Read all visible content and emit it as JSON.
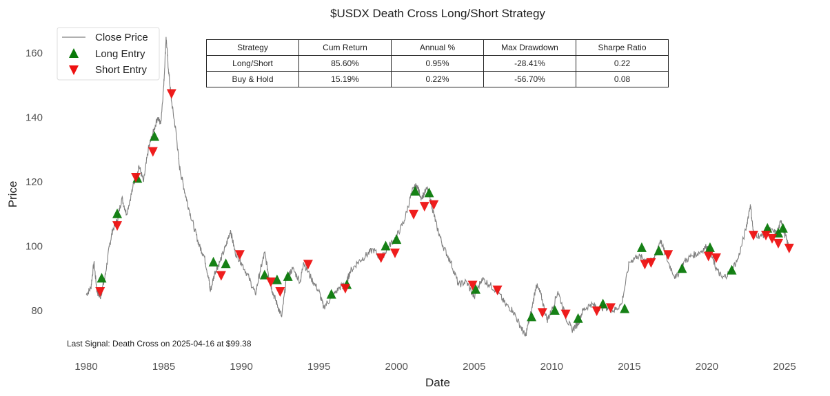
{
  "chart_data": {
    "type": "line",
    "title": "$USDX Death Cross Long/Short Strategy",
    "xlabel": "Date",
    "ylabel": "Price",
    "xlim": [
      1978.7,
      2026.4
    ],
    "ylim": [
      66,
      168
    ],
    "xticks": [
      "1980",
      "1985",
      "1990",
      "1995",
      "2000",
      "2005",
      "2010",
      "2015",
      "2020",
      "2025"
    ],
    "yticks": [
      "80",
      "100",
      "120",
      "140",
      "160"
    ],
    "grid": false,
    "legend": {
      "placement": "top-left",
      "entries": [
        "Close Price",
        "Long Entry",
        "Short Entry"
      ]
    },
    "colors": {
      "line": "#808080",
      "long": "#0a7a0a",
      "short": "#ee1111"
    },
    "series": [
      {
        "name": "Close Price",
        "points": [
          [
            1980.0,
            85
          ],
          [
            1980.3,
            87
          ],
          [
            1980.5,
            95
          ],
          [
            1980.7,
            86
          ],
          [
            1980.9,
            84
          ],
          [
            1981.2,
            90
          ],
          [
            1981.5,
            100
          ],
          [
            1981.7,
            105
          ],
          [
            1982,
            108
          ],
          [
            1982.3,
            115
          ],
          [
            1982.6,
            110
          ],
          [
            1983,
            118
          ],
          [
            1983.4,
            125
          ],
          [
            1983.7,
            120
          ],
          [
            1984,
            130
          ],
          [
            1984.3,
            135
          ],
          [
            1984.6,
            140
          ],
          [
            1984.8,
            138
          ],
          [
            1985.0,
            150
          ],
          [
            1985.15,
            165
          ],
          [
            1985.3,
            155
          ],
          [
            1985.5,
            145
          ],
          [
            1985.8,
            135
          ],
          [
            1986,
            125
          ],
          [
            1986.3,
            118
          ],
          [
            1986.6,
            112
          ],
          [
            1987,
            105
          ],
          [
            1987.3,
            100
          ],
          [
            1987.6,
            97
          ],
          [
            1987.9,
            90
          ],
          [
            1988,
            86
          ],
          [
            1988.3,
            92
          ],
          [
            1988.6,
            95
          ],
          [
            1989,
            100
          ],
          [
            1989.3,
            105
          ],
          [
            1989.6,
            98
          ],
          [
            1990,
            95
          ],
          [
            1990.5,
            90
          ],
          [
            1990.9,
            85
          ],
          [
            1991.2,
            92
          ],
          [
            1991.5,
            98
          ],
          [
            1991.8,
            90
          ],
          [
            1992,
            86
          ],
          [
            1992.3,
            82
          ],
          [
            1992.6,
            78
          ],
          [
            1992.9,
            90
          ],
          [
            1993.3,
            93
          ],
          [
            1993.8,
            89
          ],
          [
            1994,
            95
          ],
          [
            1994.5,
            90
          ],
          [
            1995,
            86
          ],
          [
            1995.3,
            81
          ],
          [
            1995.8,
            84
          ],
          [
            1996.3,
            87
          ],
          [
            1996.8,
            89
          ],
          [
            1997,
            92
          ],
          [
            1997.5,
            95
          ],
          [
            1998,
            97
          ],
          [
            1998.5,
            99
          ],
          [
            1999,
            96
          ],
          [
            1999.5,
            100
          ],
          [
            2000,
            103
          ],
          [
            2000.5,
            108
          ],
          [
            2001,
            117
          ],
          [
            2001.3,
            119
          ],
          [
            2001.6,
            115
          ],
          [
            2002,
            118
          ],
          [
            2002.3,
            112
          ],
          [
            2002.6,
            106
          ],
          [
            2003,
            100
          ],
          [
            2003.5,
            95
          ],
          [
            2004,
            88
          ],
          [
            2004.5,
            89
          ],
          [
            2005,
            84
          ],
          [
            2005.5,
            90
          ],
          [
            2006,
            88
          ],
          [
            2006.5,
            86
          ],
          [
            2007,
            82
          ],
          [
            2007.5,
            80
          ],
          [
            2008,
            75
          ],
          [
            2008.3,
            72
          ],
          [
            2008.7,
            80
          ],
          [
            2009,
            88
          ],
          [
            2009.3,
            85
          ],
          [
            2009.7,
            77
          ],
          [
            2010,
            80
          ],
          [
            2010.4,
            86
          ],
          [
            2010.9,
            78
          ],
          [
            2011.3,
            74
          ],
          [
            2011.7,
            76
          ],
          [
            2012,
            80
          ],
          [
            2012.5,
            82
          ],
          [
            2013,
            81
          ],
          [
            2013.5,
            81
          ],
          [
            2014,
            80
          ],
          [
            2014.5,
            82
          ],
          [
            2015,
            95
          ],
          [
            2015.5,
            97
          ],
          [
            2016,
            96
          ],
          [
            2016.5,
            95
          ],
          [
            2017,
            102
          ],
          [
            2017.5,
            95
          ],
          [
            2018,
            90
          ],
          [
            2018.5,
            95
          ],
          [
            2019,
            97
          ],
          [
            2019.5,
            98
          ],
          [
            2020,
            100
          ],
          [
            2020.3,
            97
          ],
          [
            2020.6,
            93
          ],
          [
            2021,
            90
          ],
          [
            2021.5,
            92
          ],
          [
            2022,
            96
          ],
          [
            2022.5,
            105
          ],
          [
            2022.8,
            113
          ],
          [
            2023,
            104
          ],
          [
            2023.5,
            103
          ],
          [
            2024,
            105
          ],
          [
            2024.5,
            104
          ],
          [
            2024.8,
            108
          ],
          [
            2025,
            104
          ],
          [
            2025.3,
            99.38
          ]
        ]
      },
      {
        "name": "Long Entry",
        "points": [
          [
            1981,
            90
          ],
          [
            1982,
            110
          ],
          [
            1983.3,
            121
          ],
          [
            1984.4,
            134
          ],
          [
            1988.2,
            95
          ],
          [
            1989,
            94.5
          ],
          [
            1991.5,
            91
          ],
          [
            1992.3,
            89.5
          ],
          [
            1993,
            90.5
          ],
          [
            1995.8,
            85
          ],
          [
            1996.8,
            88
          ],
          [
            1999.3,
            100
          ],
          [
            2000,
            102
          ],
          [
            2001.2,
            117
          ],
          [
            2002.1,
            116.5
          ],
          [
            2005.1,
            86.5
          ],
          [
            2008.7,
            78
          ],
          [
            2010.2,
            80
          ],
          [
            2011.7,
            77.5
          ],
          [
            2013.3,
            82
          ],
          [
            2014.7,
            80.5
          ],
          [
            2015.8,
            99.5
          ],
          [
            2016.9,
            98.5
          ],
          [
            2018.4,
            93
          ],
          [
            2020.2,
            99.5
          ],
          [
            2021.6,
            92.5
          ],
          [
            2023.9,
            105.5
          ],
          [
            2024.6,
            104
          ],
          [
            2024.9,
            105.5
          ]
        ]
      },
      {
        "name": "Short Entry",
        "points": [
          [
            1980.9,
            86
          ],
          [
            1982,
            106.5
          ],
          [
            1983.2,
            121.5
          ],
          [
            1984.3,
            129.5
          ],
          [
            1985.5,
            147.5
          ],
          [
            1988.7,
            91
          ],
          [
            1989.9,
            97.5
          ],
          [
            1991.9,
            89
          ],
          [
            1992.5,
            86
          ],
          [
            1994.3,
            94.5
          ],
          [
            1996.7,
            87
          ],
          [
            1999,
            96.5
          ],
          [
            1999.9,
            98
          ],
          [
            2001.1,
            110
          ],
          [
            2001.8,
            112.5
          ],
          [
            2002.4,
            113
          ],
          [
            2004.9,
            88
          ],
          [
            2006.5,
            86.5
          ],
          [
            2009.4,
            79.5
          ],
          [
            2010.9,
            79
          ],
          [
            2012.9,
            80
          ],
          [
            2013.8,
            81
          ],
          [
            2016,
            94.5
          ],
          [
            2016.4,
            95
          ],
          [
            2017.5,
            97.5
          ],
          [
            2020.1,
            97
          ],
          [
            2020.6,
            96.5
          ],
          [
            2023,
            103.5
          ],
          [
            2023.8,
            103.5
          ],
          [
            2024.2,
            102.5
          ],
          [
            2024.6,
            101
          ],
          [
            2025.3,
            99.5
          ]
        ]
      }
    ],
    "annotation": "Last Signal: Death Cross on 2025-04-16 at $99.38",
    "table": {
      "headers": [
        "Strategy",
        "Cum Return",
        "Annual %",
        "Max Drawdown",
        "Sharpe Ratio"
      ],
      "rows": [
        [
          "Long/Short",
          "85.60%",
          "0.95%",
          "-28.41%",
          "0.22"
        ],
        [
          "Buy & Hold",
          "15.19%",
          "0.22%",
          "-56.70%",
          "0.08"
        ]
      ]
    }
  }
}
